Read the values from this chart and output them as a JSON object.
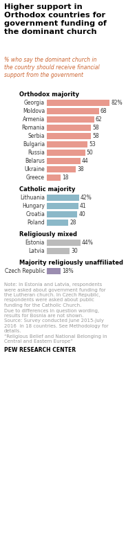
{
  "title": "Higher support in\nOrthodox countries for\ngovernment funding of\nthe dominant church",
  "subtitle": "% who say the dominant church in\nthe country should receive financial\nsupport from the government",
  "sections": [
    {
      "label": "Orthodox majority",
      "countries": [
        "Georgia",
        "Moldova",
        "Armenia",
        "Romania",
        "Serbia",
        "Bulgaria",
        "Russia",
        "Belarus",
        "Ukraine",
        "Greece"
      ],
      "values": [
        82,
        68,
        62,
        58,
        58,
        53,
        50,
        44,
        38,
        18
      ],
      "color": "#E8998D"
    },
    {
      "label": "Catholic majority",
      "countries": [
        "Lithuania",
        "Hungary",
        "Croatia",
        "Poland"
      ],
      "values": [
        42,
        41,
        40,
        28
      ],
      "color": "#8BB8C8"
    },
    {
      "label": "Religiously mixed",
      "countries": [
        "Estonia",
        "Latvia"
      ],
      "values": [
        44,
        30
      ],
      "color": "#BBBBBB"
    },
    {
      "label": "Majority religiously unaffiliated",
      "countries": [
        "Czech Republic"
      ],
      "values": [
        18
      ],
      "color": "#9B8DB0"
    }
  ],
  "note_lines": [
    "Note: In Estonia and Latvia, respondents",
    "were asked about government funding for",
    "the Lutheran church. In Czech Republic,",
    "respondents were asked about public",
    "funding for the Catholic Church.",
    "Due to differences in question wording,",
    "results for Bosnia are not shown.",
    "Source: Survey conducted June 2015-July",
    "2016  in 18 countries. See Methodology for",
    "details.",
    "“Religious Belief and National Belonging in",
    "Central and Eastern Europe”"
  ],
  "source_label": "PEW RESEARCH CENTER",
  "title_color": "#000000",
  "subtitle_color": "#CC6633",
  "section_label_color": "#000000",
  "note_color": "#999999",
  "source_color": "#000000",
  "bar_max": 90
}
